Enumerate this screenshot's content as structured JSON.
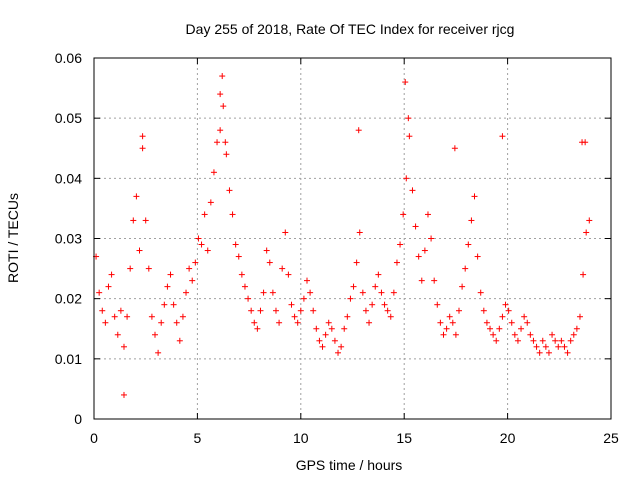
{
  "chart_data": {
    "type": "scatter",
    "title": "Day 255 of 2018, Rate Of TEC Index for receiver rjcg",
    "xlabel": "GPS time / hours",
    "ylabel": "ROTI / TECUs",
    "xlim": [
      0,
      25
    ],
    "ylim": [
      0,
      0.06
    ],
    "x_ticks": [
      "0",
      "5",
      "10",
      "15",
      "20",
      "25"
    ],
    "y_ticks": [
      "0",
      "0.01",
      "0.02",
      "0.03",
      "0.04",
      "0.05",
      "0.06"
    ],
    "x_tick_values": [
      0,
      5,
      10,
      15,
      20,
      25
    ],
    "y_tick_values": [
      0,
      0.01,
      0.02,
      0.03,
      0.04,
      0.05,
      0.06
    ],
    "grid": true,
    "marker": "+",
    "colors": {
      "series": "#ff0000",
      "grid": "#a0a0a0",
      "axes": "#000000"
    },
    "series": [
      {
        "x": [
          0.1,
          0.25,
          0.4,
          0.55,
          0.7,
          0.85,
          1.0,
          1.15,
          1.3,
          1.45,
          1.6,
          1.75,
          1.9,
          2.05,
          2.2,
          2.35,
          2.5,
          2.65,
          2.8,
          2.95,
          3.1,
          3.25,
          3.4,
          3.55,
          3.7,
          3.85,
          4.0,
          4.15,
          4.3,
          4.45,
          4.6,
          4.75,
          4.9,
          5.05,
          5.2,
          5.35,
          5.5,
          5.65,
          5.8,
          5.95,
          6.1,
          6.25,
          6.4,
          6.55,
          6.7,
          6.85,
          7.0,
          7.15,
          7.3,
          7.45,
          7.6,
          7.75,
          7.9,
          8.05,
          8.2,
          8.35,
          8.5,
          8.65,
          8.8,
          8.95,
          9.1,
          9.25,
          9.4,
          9.55,
          9.7,
          9.85,
          10.0,
          10.15,
          10.3,
          10.45,
          10.6,
          10.75,
          10.9,
          11.05,
          11.2,
          11.35,
          11.5,
          11.65,
          11.8,
          11.95,
          12.1,
          12.25,
          12.4,
          12.55,
          12.7,
          12.85,
          13.0,
          13.15,
          13.3,
          13.45,
          13.6,
          13.75,
          13.9,
          14.05,
          14.2,
          14.35,
          14.5,
          14.65,
          14.8,
          14.95,
          15.1,
          15.25,
          15.4,
          15.55,
          15.7,
          15.85,
          16.0,
          16.15,
          16.3,
          16.45,
          16.6,
          16.75,
          16.9,
          17.05,
          17.2,
          17.35,
          17.5,
          17.65,
          17.8,
          17.95,
          18.1,
          18.25,
          18.4,
          18.55,
          18.7,
          18.85,
          19.0,
          19.15,
          19.3,
          19.45,
          19.6,
          19.75,
          19.9,
          20.05,
          20.2,
          20.35,
          20.5,
          20.65,
          20.8,
          20.95,
          21.1,
          21.25,
          21.4,
          21.55,
          21.7,
          21.85,
          22.0,
          22.15,
          22.3,
          22.45,
          22.6,
          22.75,
          22.9,
          23.05,
          23.2,
          23.35,
          23.5,
          23.65,
          23.8,
          23.95,
          1.45,
          2.35,
          6.1,
          6.2,
          6.35,
          12.8,
          15.05,
          15.2,
          17.45,
          19.75,
          23.6,
          23.75
        ],
        "y": [
          0.027,
          0.021,
          0.018,
          0.016,
          0.022,
          0.024,
          0.017,
          0.014,
          0.018,
          0.012,
          0.017,
          0.025,
          0.033,
          0.037,
          0.028,
          0.045,
          0.033,
          0.025,
          0.017,
          0.014,
          0.011,
          0.016,
          0.019,
          0.022,
          0.024,
          0.019,
          0.016,
          0.013,
          0.017,
          0.021,
          0.025,
          0.023,
          0.026,
          0.03,
          0.029,
          0.034,
          0.028,
          0.036,
          0.041,
          0.046,
          0.048,
          0.052,
          0.044,
          0.038,
          0.034,
          0.029,
          0.027,
          0.024,
          0.022,
          0.02,
          0.018,
          0.016,
          0.015,
          0.018,
          0.021,
          0.028,
          0.026,
          0.021,
          0.018,
          0.016,
          0.025,
          0.031,
          0.024,
          0.019,
          0.017,
          0.016,
          0.018,
          0.02,
          0.023,
          0.021,
          0.018,
          0.015,
          0.013,
          0.012,
          0.014,
          0.016,
          0.015,
          0.013,
          0.011,
          0.012,
          0.015,
          0.017,
          0.02,
          0.022,
          0.026,
          0.031,
          0.021,
          0.018,
          0.016,
          0.019,
          0.022,
          0.024,
          0.021,
          0.019,
          0.018,
          0.017,
          0.021,
          0.026,
          0.029,
          0.034,
          0.04,
          0.047,
          0.038,
          0.032,
          0.027,
          0.023,
          0.028,
          0.034,
          0.03,
          0.023,
          0.019,
          0.016,
          0.014,
          0.015,
          0.017,
          0.016,
          0.014,
          0.018,
          0.022,
          0.025,
          0.029,
          0.033,
          0.037,
          0.027,
          0.021,
          0.018,
          0.016,
          0.015,
          0.014,
          0.013,
          0.015,
          0.017,
          0.019,
          0.018,
          0.016,
          0.014,
          0.013,
          0.015,
          0.017,
          0.016,
          0.014,
          0.013,
          0.012,
          0.011,
          0.013,
          0.012,
          0.011,
          0.014,
          0.013,
          0.012,
          0.013,
          0.012,
          0.011,
          0.013,
          0.014,
          0.015,
          0.017,
          0.024,
          0.031,
          0.033,
          0.004,
          0.047,
          0.054,
          0.057,
          0.046,
          0.048,
          0.056,
          0.05,
          0.045,
          0.047,
          0.046,
          0.046
        ]
      }
    ]
  }
}
